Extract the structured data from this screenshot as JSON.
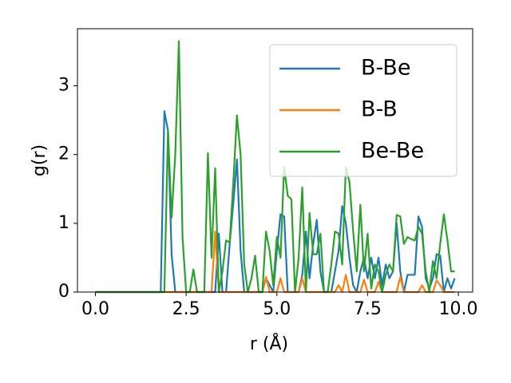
{
  "chart_data": {
    "type": "line",
    "xlabel": "r (Å)",
    "ylabel": "g(r)",
    "x": [
      0,
      0.1,
      0.2,
      0.3,
      0.4,
      0.5,
      0.6,
      0.7,
      0.8,
      0.9,
      1.0,
      1.1,
      1.2,
      1.3,
      1.4,
      1.5,
      1.6,
      1.7,
      1.8,
      1.9,
      2.0,
      2.1,
      2.2,
      2.3,
      2.4,
      2.5,
      2.6,
      2.7,
      2.8,
      2.9,
      3.0,
      3.1,
      3.2,
      3.3,
      3.4,
      3.5,
      3.6,
      3.7,
      3.8,
      3.9,
      4.0,
      4.1,
      4.2,
      4.3,
      4.4,
      4.5,
      4.6,
      4.7,
      4.8,
      4.9,
      5.0,
      5.1,
      5.2,
      5.3,
      5.4,
      5.5,
      5.6,
      5.7,
      5.8,
      5.9,
      6.0,
      6.1,
      6.2,
      6.3,
      6.4,
      6.5,
      6.6,
      6.7,
      6.8,
      6.9,
      7.0,
      7.1,
      7.2,
      7.3,
      7.4,
      7.5,
      7.6,
      7.7,
      7.8,
      7.9,
      8.0,
      8.1,
      8.2,
      8.3,
      8.4,
      8.5,
      8.6,
      8.7,
      8.8,
      8.9,
      9.0,
      9.1,
      9.2,
      9.3,
      9.4,
      9.5,
      9.6,
      9.7,
      9.8,
      9.9
    ],
    "series": [
      {
        "name": "B-Be",
        "color": "#1f77b4",
        "values": [
          0,
          0,
          0,
          0,
          0,
          0,
          0,
          0,
          0,
          0,
          0,
          0,
          0,
          0,
          0,
          0,
          0,
          0,
          0,
          2.63,
          2.35,
          0.55,
          0,
          0,
          0,
          0,
          0,
          0,
          0,
          0,
          0,
          0,
          0,
          0,
          0.85,
          0,
          0,
          0.7,
          1.3,
          1.93,
          0.6,
          0,
          0,
          0,
          0,
          0,
          0,
          0.2,
          0.1,
          0,
          0.6,
          1.13,
          1.1,
          0,
          0,
          0,
          0,
          0.25,
          0.88,
          0.2,
          0.7,
          1.05,
          0.3,
          0,
          0,
          0,
          0.3,
          0.6,
          1.25,
          1.0,
          0.5,
          0.1,
          0,
          0.3,
          0.5,
          0.2,
          0.5,
          0.2,
          0.5,
          0.1,
          0.4,
          0.2,
          0.3,
          1.0,
          0.3,
          0,
          0.25,
          0.25,
          0.25,
          1.1,
          0.95,
          0.2,
          0.05,
          0.2,
          0.55,
          0.53,
          0,
          0.2,
          0.05,
          0.2
        ]
      },
      {
        "name": "B-B",
        "color": "#ff7f0e",
        "values": [
          0,
          0,
          0,
          0,
          0,
          0,
          0,
          0,
          0,
          0,
          0,
          0,
          0,
          0,
          0,
          0,
          0,
          0,
          0,
          0,
          0,
          0,
          0,
          0,
          0,
          0,
          0,
          0,
          0,
          0,
          0,
          0,
          0,
          0.88,
          0,
          0,
          0,
          0,
          0,
          0,
          0,
          0,
          0,
          0,
          0,
          0,
          0,
          0.22,
          0,
          0,
          0,
          0.2,
          0,
          0,
          0,
          0,
          0,
          0.2,
          0,
          0,
          0,
          0,
          0,
          0,
          0,
          0,
          0,
          0.1,
          0,
          0.25,
          0,
          0,
          0,
          0,
          0.18,
          0,
          0,
          0,
          0.15,
          0,
          0,
          0,
          0,
          0,
          0.22,
          0,
          0,
          0,
          0,
          0,
          0.1,
          0,
          0,
          0,
          0.17,
          0.1,
          0,
          0,
          0,
          0
        ]
      },
      {
        "name": "Be-Be",
        "color": "#2ca02c",
        "values": [
          0,
          0,
          0,
          0,
          0,
          0,
          0,
          0,
          0,
          0,
          0,
          0,
          0,
          0,
          0,
          0,
          0,
          0,
          0,
          0,
          2.35,
          1.08,
          2.0,
          3.65,
          0.8,
          0,
          0,
          0.33,
          0,
          0,
          0,
          2.02,
          0.5,
          1.8,
          0,
          0.3,
          0.75,
          0.72,
          1.6,
          2.57,
          2.0,
          0.4,
          0,
          0.2,
          0.53,
          0,
          0,
          0.88,
          0.6,
          0.1,
          0.8,
          0.5,
          1.82,
          1.4,
          1.35,
          0,
          0.5,
          1.52,
          0,
          1.15,
          0.55,
          0.55,
          0.85,
          0,
          0,
          0.4,
          0.88,
          0.85,
          0.4,
          1.82,
          1.6,
          0.9,
          0.3,
          1.27,
          0.3,
          0.85,
          0.05,
          0.4,
          0.3,
          0,
          0.25,
          0.4,
          0.3,
          1.12,
          1.1,
          0.7,
          0.8,
          0.77,
          0.75,
          0.95,
          0.85,
          0.3,
          0,
          0.45,
          0.2,
          0.7,
          1.13,
          0.75,
          0.3,
          0.3
        ]
      }
    ],
    "xlim": [
      -0.495,
      10.395
    ],
    "xticks": [
      {
        "value": 0,
        "label": "0.0"
      },
      2.5,
      {
        "value": 5,
        "label": "5.0"
      },
      7.5,
      {
        "value": 10,
        "label": "10.0"
      }
    ],
    "ylim": [
      0,
      3.83
    ],
    "yticks": [
      0,
      1,
      2,
      3
    ],
    "legend": "upper right"
  }
}
